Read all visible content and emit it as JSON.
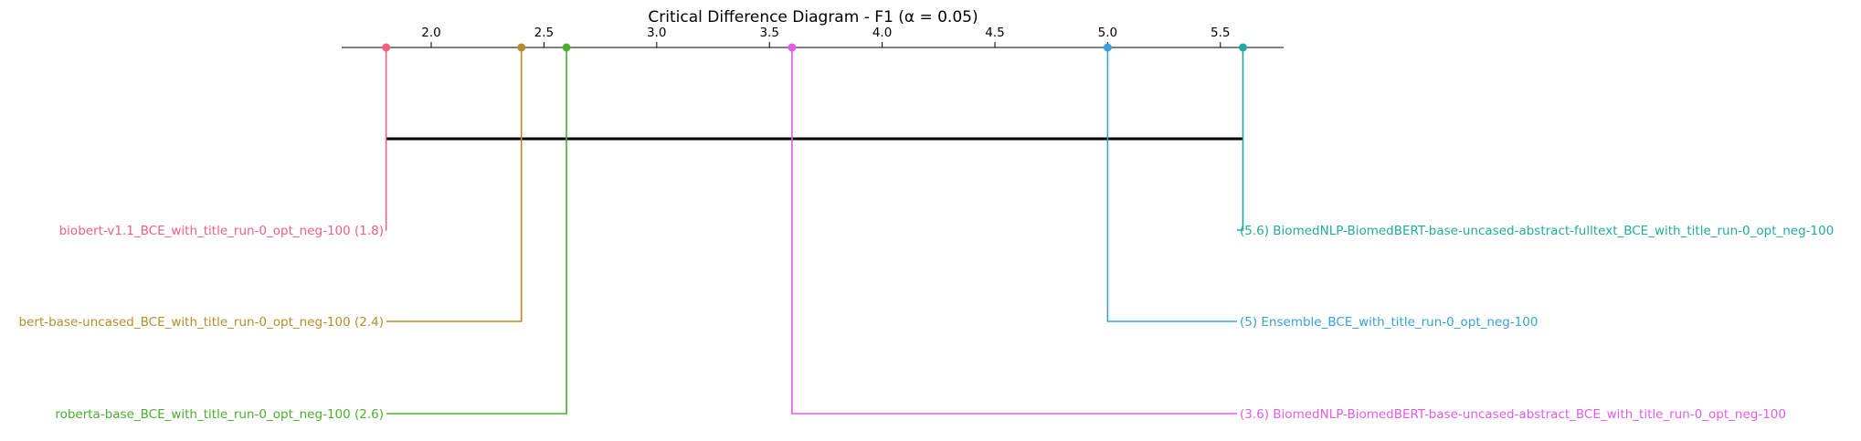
{
  "chart_data": {
    "type": "critical-difference",
    "title": "Critical Difference Diagram - F1 (α = 0.05)",
    "axis": {
      "range": [
        1.4,
        5.8
      ],
      "ticks": [
        2.0,
        2.5,
        3.0,
        3.5,
        4.0,
        4.5,
        5.0,
        5.5
      ],
      "tick_labels": [
        "2.0",
        "2.5",
        "3.0",
        "3.5",
        "4.0",
        "4.5",
        "5.0",
        "5.5"
      ]
    },
    "models": [
      {
        "name": "biobert-v1.1_BCE_with_title_run-0_opt_neg-100",
        "rank": 1.8,
        "side": "left",
        "level": 1,
        "color": "#f0607f",
        "label": "biobert-v1.1_BCE_with_title_run-0_opt_neg-100 (1.8)"
      },
      {
        "name": "bert-base-uncased_BCE_with_title_run-0_opt_neg-100",
        "rank": 2.4,
        "side": "left",
        "level": 2,
        "color": "#b58e2a",
        "label": "bert-base-uncased_BCE_with_title_run-0_opt_neg-100 (2.4)"
      },
      {
        "name": "roberta-base_BCE_with_title_run-0_opt_neg-100",
        "rank": 2.6,
        "side": "left",
        "level": 3,
        "color": "#4aae2e",
        "label": "roberta-base_BCE_with_title_run-0_opt_neg-100 (2.6)"
      },
      {
        "name": "BiomedNLP-BiomedBERT-base-uncased-abstract_BCE_with_title_run-0_opt_neg-100",
        "rank": 3.6,
        "side": "right",
        "level": 3,
        "color": "#e35ce8",
        "label": "(3.6) BiomedNLP-BiomedBERT-base-uncased-abstract_BCE_with_title_run-0_opt_neg-100"
      },
      {
        "name": "Ensemble_BCE_with_title_run-0_opt_neg-100",
        "rank": 5.0,
        "side": "right",
        "level": 2,
        "color": "#3aa0d8",
        "label": "(5) Ensemble_BCE_with_title_run-0_opt_neg-100"
      },
      {
        "name": "BiomedNLP-BiomedBERT-base-uncased-abstract-fulltext_BCE_with_title_run-0_opt_neg-100",
        "rank": 5.6,
        "side": "right",
        "level": 1,
        "color": "#22aaa0",
        "label": "(5.6) BiomedNLP-BiomedBERT-base-uncased-abstract-fulltext_BCE_with_title_run-0_opt_neg-100"
      }
    ],
    "cliques": [
      {
        "from": 1.8,
        "to": 5.6,
        "color": "#000000"
      }
    ]
  }
}
